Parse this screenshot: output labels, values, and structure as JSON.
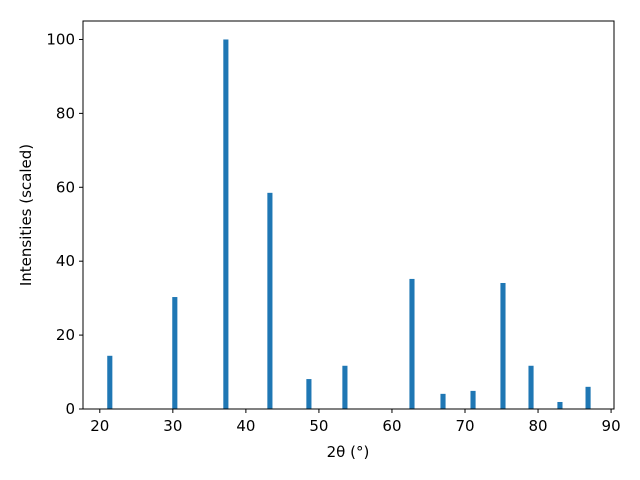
{
  "chart_data": {
    "type": "bar",
    "xlabel": "2θ (°)",
    "ylabel": "Intensities (scaled)",
    "x": [
      21.37,
      30.27,
      37.26,
      43.29,
      48.63,
      53.56,
      62.74,
      66.99,
      71.1,
      75.2,
      79.04,
      83.0,
      86.85
    ],
    "values": [
      14.4,
      30.3,
      100,
      58.5,
      8.1,
      11.7,
      35.2,
      4.1,
      4.9,
      34.1,
      11.7,
      1.9,
      6.0
    ],
    "color": "#1f77b4",
    "xlim": [
      17.7,
      90.4
    ],
    "xticks": [
      20,
      30,
      40,
      50,
      60,
      70,
      80,
      90
    ],
    "ylim": [
      0,
      105
    ],
    "yticks": [
      0,
      20,
      40,
      60,
      80,
      100
    ],
    "grid": false
  }
}
